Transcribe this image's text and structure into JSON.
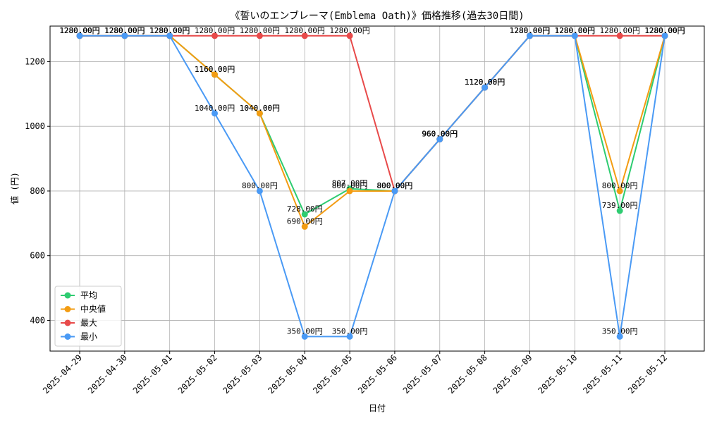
{
  "chart_data": {
    "type": "line",
    "title": "《誓いのエンブレーマ(Emblema Oath)》価格推移(過去30日間)",
    "xlabel": "日付",
    "ylabel": "値 (円)",
    "ylim": [
      305,
      1310
    ],
    "yticks": [
      400,
      600,
      800,
      1000,
      1200
    ],
    "grid": true,
    "legend_position": "lower-left",
    "categories": [
      "2025-04-29",
      "2025-04-30",
      "2025-05-01",
      "2025-05-02",
      "2025-05-03",
      "2025-05-04",
      "2025-05-05",
      "2025-05-06",
      "2025-05-07",
      "2025-05-08",
      "2025-05-09",
      "2025-05-10",
      "2025-05-11",
      "2025-05-12"
    ],
    "series": [
      {
        "name": "平均",
        "color": "#2ecc71",
        "values": [
          1280,
          1280,
          1280,
          1160,
          1040,
          728,
          807,
          800,
          960,
          1120,
          1280,
          1280,
          739,
          1280
        ]
      },
      {
        "name": "中央値",
        "color": "#f39c12",
        "values": [
          1280,
          1280,
          1280,
          1160,
          1040,
          690,
          800,
          800,
          960,
          1120,
          1280,
          1280,
          800,
          1280
        ]
      },
      {
        "name": "最大",
        "color": "#e84a4a",
        "values": [
          1280,
          1280,
          1280,
          1280,
          1280,
          1280,
          1280,
          800,
          960,
          1120,
          1280,
          1280,
          1280,
          1280
        ]
      },
      {
        "name": "最小",
        "color": "#4a9af5",
        "values": [
          1280,
          1280,
          1280,
          1040,
          800,
          350,
          350,
          800,
          960,
          1120,
          1280,
          1280,
          350,
          1280
        ]
      }
    ],
    "value_suffix": "円"
  }
}
